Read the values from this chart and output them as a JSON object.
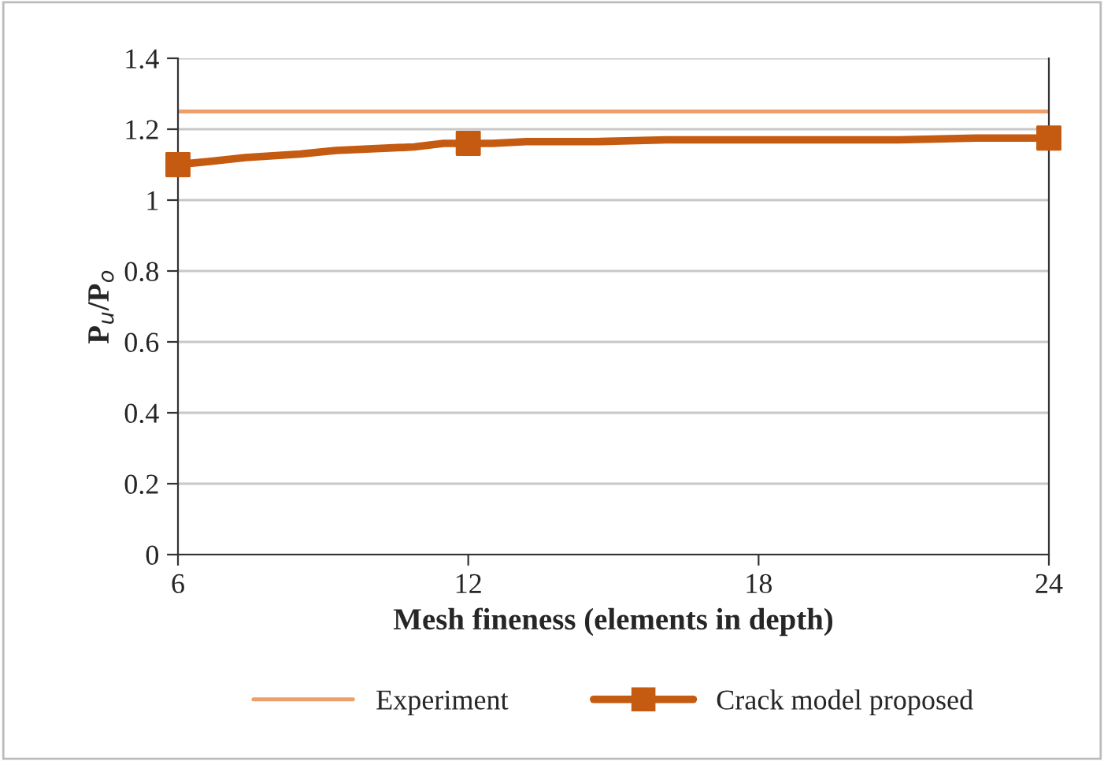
{
  "chart_data": {
    "type": "line",
    "xlabel": "Mesh fineness (elements in depth)",
    "ylabel": "P$_{u}$/P$_{o}$",
    "xlim": [
      6,
      24
    ],
    "xticks": [
      6,
      12,
      18,
      24
    ],
    "ylim": [
      0,
      1.4
    ],
    "yticks": [
      0,
      0.2,
      0.4,
      0.6,
      0.8,
      1,
      1.2,
      1.4
    ],
    "grid": "y",
    "legend": "bottom",
    "line_style": "solid",
    "series": [
      {
        "name": "Experiment",
        "color": "#eea06a",
        "marker": "none",
        "x": [
          6,
          24
        ],
        "values": [
          1.25,
          1.25
        ]
      },
      {
        "color": "#c55a11",
        "marker": "none",
        "x": [
          6,
          6.72,
          7.39,
          8.53,
          9.26,
          10.88,
          11.49,
          12,
          12.5,
          13.2,
          14.6,
          16.1,
          20.9,
          22.5,
          24
        ],
        "values": [
          1.1,
          1.11,
          1.12,
          1.13,
          1.14,
          1.15,
          1.16,
          1.16,
          1.16,
          1.165,
          1.165,
          1.17,
          1.17,
          1.175,
          1.175
        ]
      },
      {
        "name": "Crack model proposed",
        "type": "scatter",
        "color": "#c55a11",
        "marker": "square",
        "x": [
          6,
          12,
          24
        ],
        "values": [
          1.1,
          1.16,
          1.175
        ]
      }
    ]
  }
}
